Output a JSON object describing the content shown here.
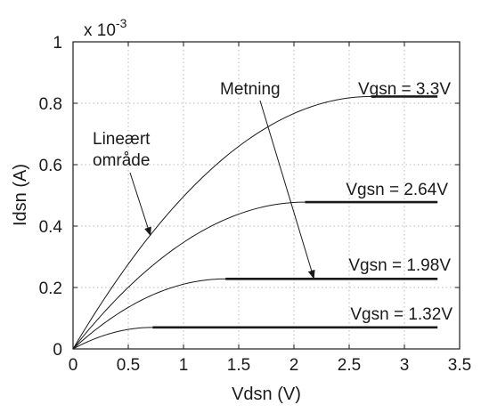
{
  "chart_data": {
    "type": "line",
    "xlabel": "Vdsn (V)",
    "ylabel": "Idsn (A)",
    "y_multiplier": {
      "base": "x 10",
      "exponent": "-3"
    },
    "xlim": [
      0,
      3.5
    ],
    "ylim": [
      0,
      1
    ],
    "x_ticks": [
      0,
      0.5,
      1,
      1.5,
      2,
      2.5,
      3,
      3.5
    ],
    "y_ticks": [
      0,
      0.2,
      0.4,
      0.6,
      0.8,
      1
    ],
    "x_tick_labels": [
      "0",
      "0.5",
      "1",
      "1.5",
      "2",
      "2.5",
      "3",
      "3.5"
    ],
    "y_tick_labels": [
      "0",
      "0.2",
      "0.4",
      "0.6",
      "0.8",
      "1"
    ],
    "grid": true,
    "series": [
      {
        "name": "Vgsn = 3.3V",
        "vsat": 2.7,
        "isat": 0.822,
        "vmax": 3.3
      },
      {
        "name": "Vgsn = 2.64V",
        "vsat": 2.1,
        "isat": 0.478,
        "vmax": 3.3
      },
      {
        "name": "Vgsn = 1.98V",
        "vsat": 1.38,
        "isat": 0.228,
        "vmax": 3.3
      },
      {
        "name": "Vgsn = 1.32V",
        "vsat": 0.72,
        "isat": 0.07,
        "vmax": 3.3
      }
    ],
    "annotations": {
      "linear_line1": "Lineært",
      "linear_line2": "område",
      "saturation": "Metning",
      "linear_arrow_target": [
        0.7,
        0.37
      ],
      "saturation_arrow_target": [
        2.18,
        0.23
      ]
    }
  }
}
